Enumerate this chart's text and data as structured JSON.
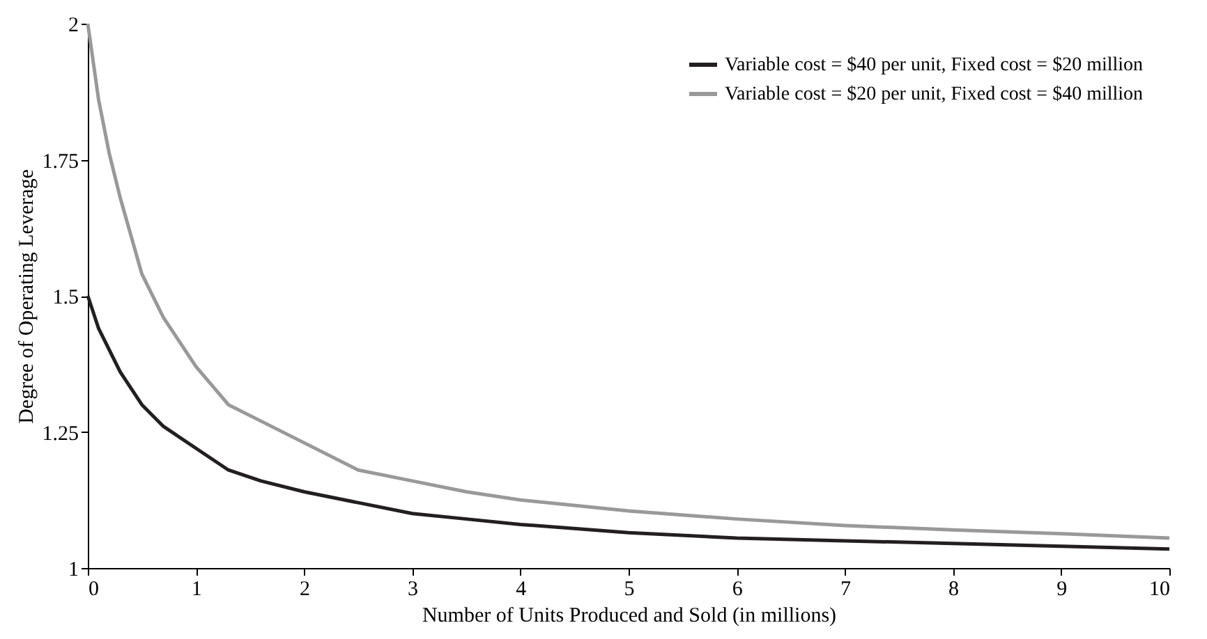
{
  "chart_data": {
    "type": "line",
    "xlabel": "Number of Units Produced and Sold (in millions)",
    "ylabel": "Degree of Operating Leverage",
    "x": [
      0,
      0.1,
      0.2,
      0.3,
      0.5,
      0.7,
      1,
      1.3,
      1.6,
      2,
      2.5,
      3,
      3.5,
      4,
      5,
      6,
      7,
      8,
      9,
      10
    ],
    "series": [
      {
        "name": "Variable cost = $40 per unit, Fixed cost = $20 million",
        "color": "#231f20",
        "values": [
          1.5,
          1.44,
          1.4,
          1.36,
          1.3,
          1.26,
          1.22,
          1.18,
          1.16,
          1.14,
          1.12,
          1.1,
          1.09,
          1.08,
          1.065,
          1.055,
          1.05,
          1.045,
          1.04,
          1.035
        ]
      },
      {
        "name": "Variable cost = $20 per unit, Fixed cost = $40 million",
        "color": "#999999",
        "values": [
          2.0,
          1.86,
          1.76,
          1.68,
          1.54,
          1.46,
          1.37,
          1.3,
          1.27,
          1.23,
          1.18,
          1.16,
          1.14,
          1.125,
          1.105,
          1.09,
          1.078,
          1.07,
          1.063,
          1.055
        ]
      }
    ],
    "xlim": [
      0,
      10
    ],
    "xticks": [
      0,
      1,
      2,
      3,
      4,
      5,
      6,
      7,
      8,
      9,
      10
    ],
    "ylim": [
      1,
      2
    ],
    "yticks": [
      1,
      1.25,
      1.5,
      1.75,
      2
    ],
    "grid": false,
    "legend": "top right",
    "marker": "none",
    "line_style": "solid"
  }
}
